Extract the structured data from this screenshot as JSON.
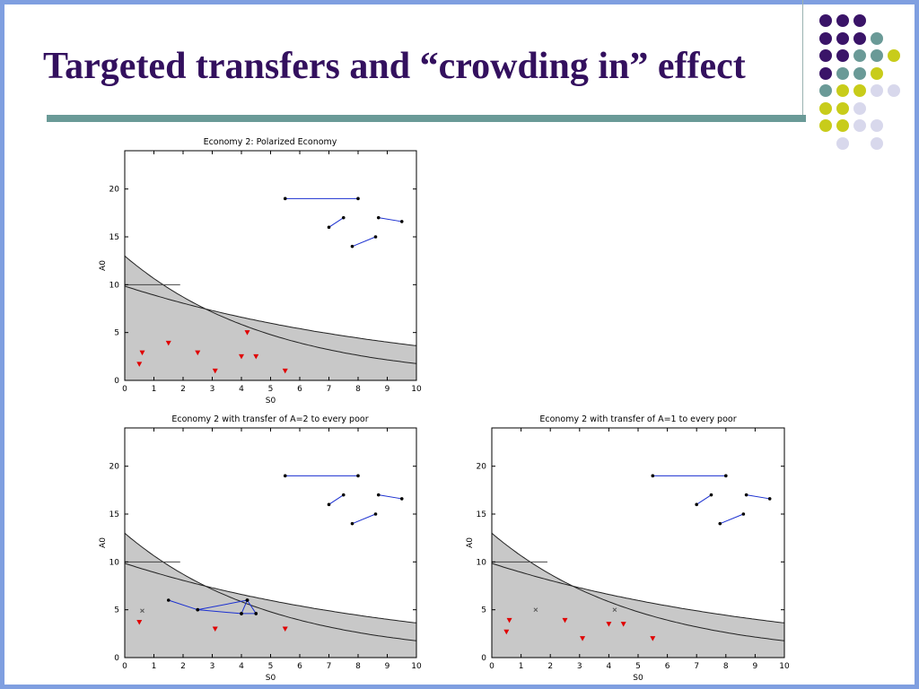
{
  "slide": {
    "title": "Targeted transfers and “crowding in” effect"
  },
  "decor": {
    "dot_colors": {
      "purple": "#3a1468",
      "teal": "#6a9a97",
      "yellow": "#c8cc1a",
      "lavender": "#d8d8ec"
    },
    "dot_grid": [
      [
        "purple",
        "purple",
        "purple",
        null
      ],
      [
        "purple",
        "purple",
        "purple",
        "teal"
      ],
      [
        "purple",
        "purple",
        "teal",
        "teal",
        "yellow"
      ],
      [
        "purple",
        "teal",
        "teal",
        "yellow",
        null
      ],
      [
        "teal",
        "yellow",
        "yellow",
        "lavender",
        "lavender"
      ],
      [
        "yellow",
        "yellow",
        "lavender",
        null
      ],
      [
        "yellow",
        "yellow",
        "lavender",
        "lavender"
      ],
      [
        null,
        "lavender",
        null,
        "lavender"
      ]
    ]
  },
  "chart_data": [
    {
      "type": "scatter",
      "title": "Economy 2: Polarized Economy",
      "xlabel": "S0",
      "ylabel": "A0",
      "xlim": [
        0,
        10
      ],
      "ylim": [
        0,
        24
      ],
      "xticks": [
        "0",
        "1",
        "2",
        "3",
        "4",
        "5",
        "6",
        "7",
        "8",
        "9",
        "10"
      ],
      "yticks": [
        "0",
        "5",
        "10",
        "15",
        "20"
      ],
      "grid": false,
      "poor_points": [
        [
          0.5,
          1.7
        ],
        [
          0.6,
          2.9
        ],
        [
          1.5,
          3.9
        ],
        [
          2.5,
          2.9
        ],
        [
          3.1,
          1.0
        ],
        [
          4.0,
          2.5
        ],
        [
          4.2,
          5.0
        ],
        [
          4.5,
          2.5
        ],
        [
          5.5,
          1.0
        ]
      ],
      "transferred_points": [],
      "rich_links": [
        [
          [
            5.5,
            19
          ],
          [
            8,
            19
          ]
        ],
        [
          [
            7,
            16
          ],
          [
            7.5,
            17
          ]
        ],
        [
          [
            7.8,
            14
          ],
          [
            8.6,
            15
          ]
        ],
        [
          [
            8.7,
            17
          ],
          [
            9.5,
            16.6
          ]
        ]
      ],
      "poor_links": []
    },
    {
      "type": "scatter",
      "title": "Economy 2 with transfer of A=2 to every poor",
      "xlabel": "S0",
      "ylabel": "A0",
      "xlim": [
        0,
        10
      ],
      "ylim": [
        0,
        24
      ],
      "xticks": [
        "0",
        "1",
        "2",
        "3",
        "4",
        "5",
        "6",
        "7",
        "8",
        "9",
        "10"
      ],
      "yticks": [
        "0",
        "5",
        "10",
        "15",
        "20"
      ],
      "grid": false,
      "poor_points": [
        [
          0.5,
          3.7
        ],
        [
          3.1,
          3.0
        ],
        [
          5.5,
          3.0
        ]
      ],
      "transferred_points": [
        [
          0.6,
          4.9
        ]
      ],
      "rich_links": [
        [
          [
            5.5,
            19
          ],
          [
            8,
            19
          ]
        ],
        [
          [
            7,
            16
          ],
          [
            7.5,
            17
          ]
        ],
        [
          [
            7.8,
            14
          ],
          [
            8.6,
            15
          ]
        ],
        [
          [
            8.7,
            17
          ],
          [
            9.5,
            16.6
          ]
        ]
      ],
      "poor_links": [
        [
          [
            1.5,
            6.0
          ],
          [
            2.5,
            5.0
          ]
        ],
        [
          [
            2.5,
            5.0
          ],
          [
            4.2,
            6.0
          ]
        ],
        [
          [
            4.0,
            4.6
          ],
          [
            4.2,
            6.0
          ]
        ],
        [
          [
            4.2,
            6.0
          ],
          [
            4.5,
            4.6
          ]
        ],
        [
          [
            4.0,
            4.6
          ],
          [
            4.5,
            4.6
          ]
        ],
        [
          [
            2.5,
            5.0
          ],
          [
            4.0,
            4.6
          ]
        ]
      ]
    },
    {
      "type": "scatter",
      "title": "Economy 2 with transfer of A=1 to every poor",
      "xlabel": "S0",
      "ylabel": "A0",
      "xlim": [
        0,
        10
      ],
      "ylim": [
        0,
        24
      ],
      "xticks": [
        "0",
        "1",
        "2",
        "3",
        "4",
        "5",
        "6",
        "7",
        "8",
        "9",
        "10"
      ],
      "yticks": [
        "0",
        "5",
        "10",
        "15",
        "20"
      ],
      "grid": false,
      "poor_points": [
        [
          0.5,
          2.7
        ],
        [
          0.6,
          3.9
        ],
        [
          2.5,
          3.9
        ],
        [
          3.1,
          2.0
        ],
        [
          4.0,
          3.5
        ],
        [
          4.5,
          3.5
        ],
        [
          5.5,
          2.0
        ]
      ],
      "transferred_points": [
        [
          1.5,
          5.0
        ],
        [
          4.2,
          5.0
        ]
      ],
      "rich_links": [
        [
          [
            5.5,
            19
          ],
          [
            8,
            19
          ]
        ],
        [
          [
            7,
            16
          ],
          [
            7.5,
            17
          ]
        ],
        [
          [
            7.8,
            14
          ],
          [
            8.6,
            15
          ]
        ],
        [
          [
            8.7,
            17
          ],
          [
            9.5,
            16.6
          ]
        ]
      ],
      "poor_links": []
    }
  ]
}
